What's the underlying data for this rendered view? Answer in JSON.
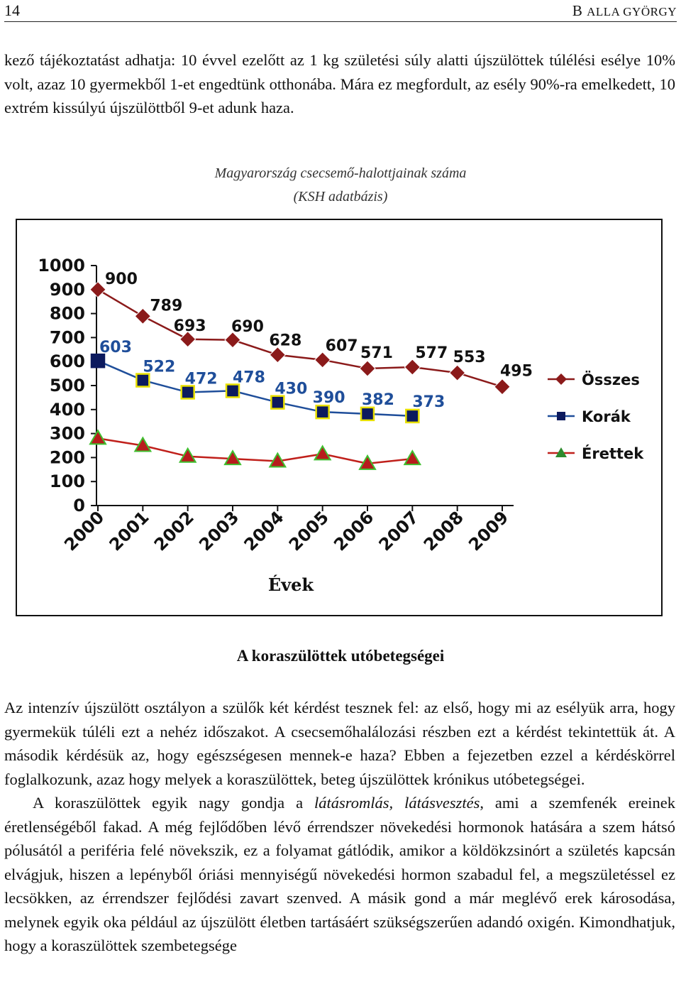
{
  "header": {
    "page_number": "14",
    "author": "Balla György"
  },
  "intro_text": "kező tájékoztatást adhatja: 10 évvel ezelőtt az 1 kg születési súly alatti újszülöttek túlélési esélye 10% volt, azaz 10 gyermekből 1-et engedtünk otthonába. Mára ez megfordult, az esély 90%-ra emelkedett, 10 extrém kissúlyú újszülöttből 9-et adunk haza.",
  "figure": {
    "title_line1": "Magyarország csecsemő-halottjainak száma",
    "title_line2": "(KSH adatbázis)"
  },
  "chart_data": {
    "type": "line",
    "x": [
      "2000",
      "2001",
      "2002",
      "2003",
      "2004",
      "2005",
      "2006",
      "2007",
      "2008",
      "2009"
    ],
    "xlabel": "Évek",
    "ylabel": "",
    "ylim": [
      0,
      1000
    ],
    "yticks": [
      "0",
      "100",
      "200",
      "300",
      "400",
      "500",
      "600",
      "700",
      "800",
      "900",
      "1000"
    ],
    "legend_position": "right",
    "grid": false,
    "series": [
      {
        "name": "Összes",
        "color": "#8b1a1a",
        "marker": "diamond",
        "labeled": true,
        "values": [
          900,
          789,
          693,
          690,
          628,
          607,
          571,
          577,
          553,
          495
        ]
      },
      {
        "name": "Korák",
        "color": "#1f4e9a",
        "marker": "square",
        "labeled": true,
        "values": [
          603,
          522,
          472,
          478,
          430,
          390,
          382,
          373,
          null,
          null
        ]
      },
      {
        "name": "Érettek",
        "color": "#c0201b",
        "marker": "triangle",
        "labeled": false,
        "values": [
          280,
          250,
          205,
          195,
          185,
          215,
          175,
          195,
          null,
          null
        ]
      }
    ]
  },
  "section_title": "A koraszülöttek utóbetegségei",
  "paragraph1": "Az intenzív újszülött osztályon a szülők két kérdést tesznek fel: az első, hogy mi az esélyük arra, hogy gyermekük túléli ezt a nehéz időszakot. A csecsemőhalálozási részben ezt a kérdést tekintettük át. A második kérdésük az, hogy egészségesen mennek-e haza? Ebben a fejezetben ezzel a kérdéskörrel foglalkozunk, azaz hogy melyek a koraszülöttek, beteg újszülöttek krónikus utóbetegségei.",
  "paragraph2": {
    "before": "A koraszülöttek egyik nagy gondja a ",
    "emphasis": "látásromlás, látásvesztés",
    "after": ", ami a szemfenék ereinek éretlenségéből fakad. A még fejlődőben lévő érrendszer növekedési hormonok hatására a szem hátsó pólusától a periféria felé növekszik, ez a folyamat gátlódik, amikor a köldökzsinórt a születés kapcsán elvágjuk, hiszen a lepényből óriási mennyiségű növekedési hormon szabadul fel, a megszületéssel ez lecsökken, az érrendszer fejlődési zavart szenved. A másik gond a már meglévő erek károsodása, melynek egyik oka például az újszülött életben tartásáért szükségszerűen adandó oxigén. Kimondhatjuk, hogy a koraszülöttek szembetegsége"
  }
}
